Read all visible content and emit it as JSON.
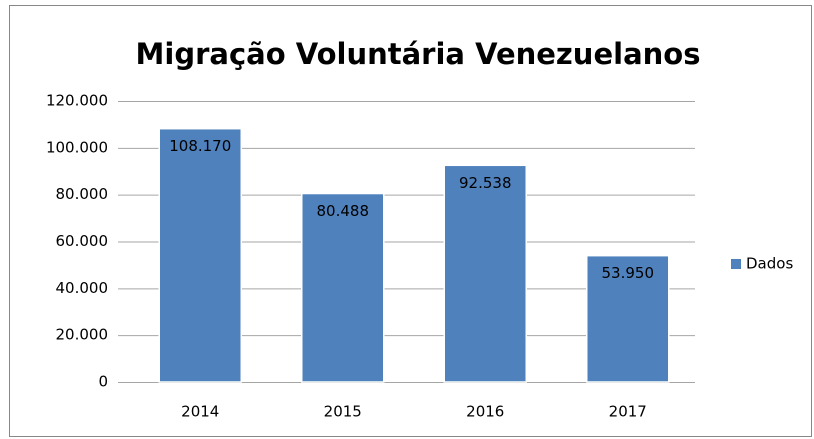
{
  "chart_data": {
    "type": "bar",
    "title": "Migração Voluntária Venezuelanos",
    "categories": [
      "2014",
      "2015",
      "2016",
      "2017"
    ],
    "series": [
      {
        "name": "Dados",
        "color": "#4f81bd",
        "values": [
          108170,
          80488,
          92538,
          53950
        ],
        "value_labels": [
          "108.170",
          "80.488",
          "92.538",
          "53.950"
        ]
      }
    ],
    "ylim": [
      0,
      120000
    ],
    "yticks": [
      0,
      {
        "value": 20000,
        "label": "20.000"
      },
      {
        "value": 40000,
        "label": "40.000"
      },
      {
        "value": 60000,
        "label": "60.000"
      },
      {
        "value": 80000,
        "label": "80.000"
      },
      {
        "value": 100000,
        "label": "100.000"
      },
      {
        "value": 120000,
        "label": "120.000"
      }
    ],
    "grid": true,
    "legend": "right"
  }
}
